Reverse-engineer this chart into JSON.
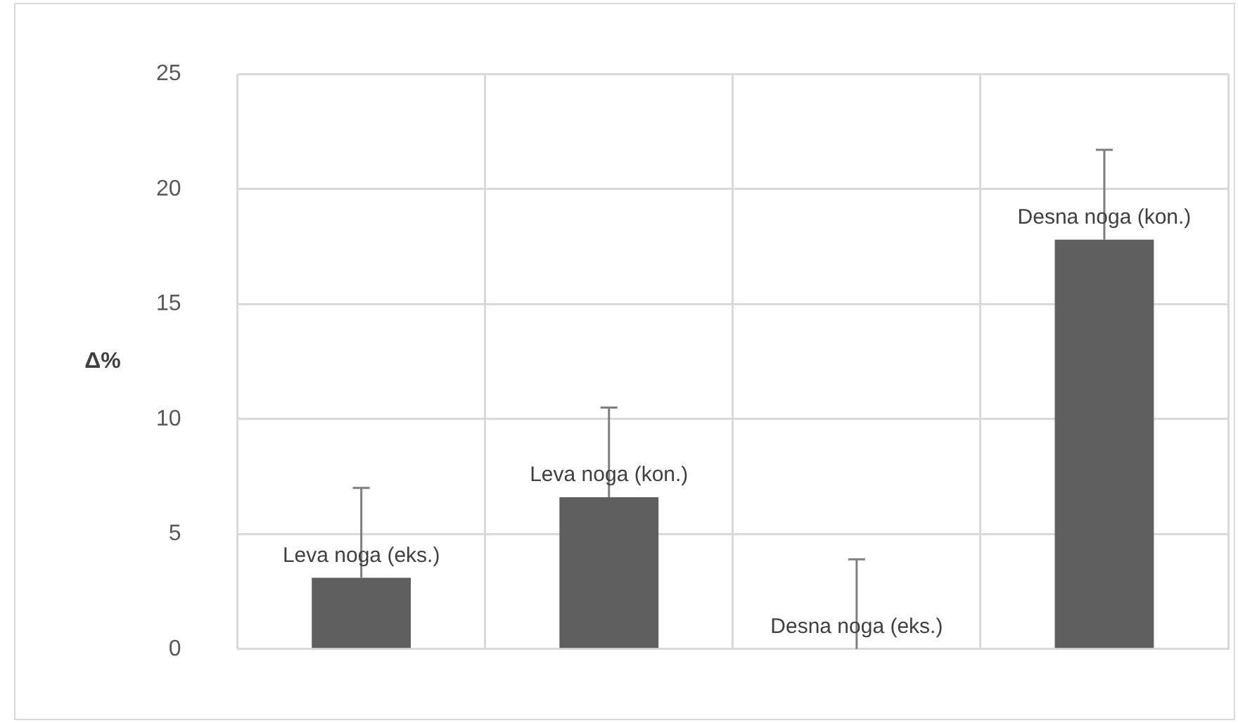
{
  "chart_data": {
    "type": "bar",
    "ylabel": "Δ%",
    "categories": [
      "Leva noga (eks.)",
      "Leva noga (kon.)",
      "Desna noga (eks.)",
      "Desna noga (kon.)"
    ],
    "values": [
      3.1,
      6.6,
      0,
      17.8
    ],
    "errors": [
      [
        3.1,
        7.0
      ],
      [
        6.6,
        10.5
      ],
      [
        0,
        3.9
      ],
      [
        17.8,
        21.7
      ]
    ],
    "color": "#5f5f5f",
    "ylim": [
      0,
      25
    ],
    "yticks": [
      0,
      5,
      10,
      15,
      20,
      25
    ],
    "grid": true
  }
}
